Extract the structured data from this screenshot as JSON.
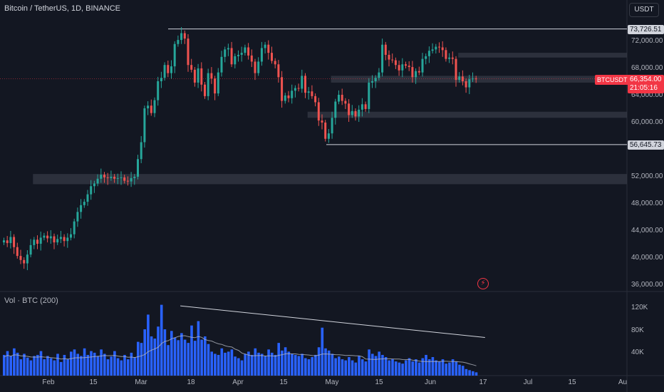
{
  "header": {
    "title": "Bitcoin / TetherUS, 1D, BINANCE",
    "currency_button": "USDT",
    "volume_title": "Vol · BTC (200)"
  },
  "price_axis": [
    "72,000.00",
    "68,000.00",
    "64,000.00",
    "60,000.00",
    "52,000.00",
    "48,000.00",
    "44,000.00",
    "40,000.00",
    "36,000.00"
  ],
  "volume_axis": [
    "120K",
    "80K",
    "40K"
  ],
  "date_axis": [
    "Feb",
    "15",
    "Mar",
    "18",
    "Apr",
    "15",
    "May",
    "15",
    "Jun",
    "17",
    "Jul",
    "15",
    "Au"
  ],
  "level_tags": {
    "high": "73,726.51",
    "low": "56,645.73",
    "ticker": "BTCUSDT",
    "last_price": "66,354.00",
    "countdown": "21:05:16"
  },
  "colors": {
    "background": "#131722",
    "up": "#26a69a",
    "down": "#ef5350",
    "volume": "#2962ff",
    "zone": "#363a45",
    "price_tag": "#f23645",
    "line": "#d1d4dc"
  },
  "icons": {
    "flash": "lightning-icon"
  },
  "chart_data": {
    "type": "candlestick",
    "title": "Bitcoin / TetherUS, 1D, BINANCE",
    "price_range": [
      35000,
      77000
    ],
    "levels": {
      "horizontal_high": 73726.51,
      "horizontal_low": 56645.73,
      "last_price": 66354.0
    },
    "zones": [
      {
        "from": 69500,
        "to": 70200,
        "start": "2024-06-05"
      },
      {
        "from": 65800,
        "to": 66800,
        "start": "2024-04-28"
      },
      {
        "from": 60600,
        "to": 61500,
        "start": "2024-04-21"
      },
      {
        "from": 50800,
        "to": 52300,
        "start": "2024-01-30"
      }
    ],
    "volume_range": [
      0,
      140000
    ],
    "trend_line": {
      "from": {
        "date": "2024-03-14",
        "volume": 128000
      },
      "to": {
        "date": "2024-06-13",
        "volume": 70000
      }
    },
    "candles_close": [
      42500,
      42100,
      43000,
      41500,
      40200,
      39600,
      39100,
      40400,
      41800,
      42600,
      42000,
      42900,
      43200,
      42800,
      43100,
      42200,
      42700,
      43000,
      42400,
      42900,
      43400,
      45300,
      46700,
      47700,
      48200,
      49300,
      50500,
      50900,
      51600,
      52200,
      51800,
      51700,
      51900,
      51600,
      51700,
      51800,
      51300,
      51200,
      51700,
      51900,
      54500,
      57000,
      62000,
      62400,
      61300,
      63200,
      66000,
      66500,
      68400,
      67200,
      68200,
      71500,
      72100,
      73100,
      72300,
      68400,
      67700,
      65800,
      67900,
      65500,
      63800,
      67200,
      66400,
      64200,
      67300,
      69600,
      70700,
      70900,
      68500,
      69700,
      69900,
      70200,
      71000,
      69800,
      68900,
      67200,
      68900,
      70900,
      71400,
      70200,
      69000,
      68500,
      66600,
      63100,
      63900,
      63500,
      64600,
      65000,
      64900,
      66800,
      64300,
      64500,
      63800,
      62900,
      60200,
      59900,
      57500,
      58300,
      60600,
      63000,
      64000,
      63100,
      62700,
      61000,
      61600,
      60800,
      61800,
      62600,
      61900,
      65800,
      66000,
      66500,
      67300,
      71400,
      69900,
      69200,
      69100,
      68400,
      67600,
      68500,
      68300,
      68100,
      66600,
      67500,
      67300,
      69300,
      69700,
      70500,
      70700,
      71100,
      71000,
      70600,
      69300,
      69500,
      69300,
      66200,
      66700,
      66000,
      65100,
      66300,
      66400,
      66354
    ],
    "volume_series": [
      38000,
      45000,
      36000,
      50000,
      42000,
      30000,
      40000,
      33000,
      28000,
      36000,
      38000,
      45000,
      30000,
      36000,
      32000,
      28000,
      40000,
      25000,
      38000,
      30000,
      44000,
      48000,
      40000,
      36000,
      50000,
      38000,
      45000,
      42000,
      36000,
      48000,
      40000,
      30000,
      35000,
      45000,
      32000,
      28000,
      38000,
      30000,
      42000,
      34000,
      62000,
      60000,
      85000,
      112000,
      72000,
      68000,
      90000,
      130000,
      85000,
      56000,
      82000,
      70000,
      65000,
      78000,
      66000,
      60000,
      92000,
      64000,
      100000,
      66000,
      72000,
      58000,
      44000,
      40000,
      38000,
      50000,
      42000,
      44000,
      48000,
      35000,
      32000,
      28000,
      40000,
      44000,
      38000,
      50000,
      42000,
      40000,
      36000,
      48000,
      42000,
      38000,
      60000,
      46000,
      52000,
      44000,
      40000,
      38000,
      36000,
      40000,
      32000,
      30000,
      34000,
      38000,
      52000,
      88000,
      50000,
      46000,
      40000,
      32000,
      35000,
      30000,
      28000,
      34000,
      28000,
      24000,
      36000,
      30000,
      26000,
      48000,
      40000,
      36000,
      44000,
      38000,
      34000,
      28000,
      30000,
      26000,
      24000,
      22000,
      28000,
      32000,
      26000,
      30000,
      24000,
      32000,
      38000,
      30000,
      34000,
      28000,
      26000,
      30000,
      22000,
      24000,
      30000,
      26000,
      20000,
      18000,
      12000,
      10000,
      8000,
      6000
    ],
    "date_labels": [
      "Feb",
      "15",
      "Mar",
      "18",
      "Apr",
      "15",
      "May",
      "15",
      "Jun",
      "17",
      "Jul",
      "15",
      "Au"
    ]
  }
}
